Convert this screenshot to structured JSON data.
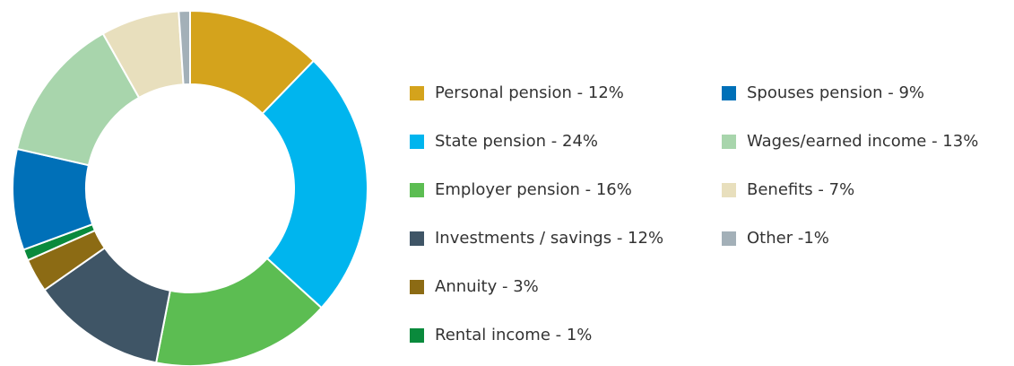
{
  "chart_data": {
    "type": "donut",
    "categories": [
      "Personal pension - 12%",
      "State pension - 24%",
      "Employer pension - 16%",
      "Investments / savings - 12%",
      "Annuity - 3%",
      "Rental income - 1%",
      "Spouses pension - 9%",
      "Wages/earned income - 13%",
      "Benefits - 7%",
      "Other -1%"
    ],
    "values": [
      12,
      24,
      16,
      12,
      3,
      1,
      9,
      13,
      7,
      1
    ],
    "colors": [
      "#d4a31c",
      "#00b5ee",
      "#5cbd52",
      "#3f5566",
      "#8c6b14",
      "#0a8a3c",
      "#0070b8",
      "#a8d5ac",
      "#e8dfbd",
      "#a3b0b8"
    ]
  }
}
